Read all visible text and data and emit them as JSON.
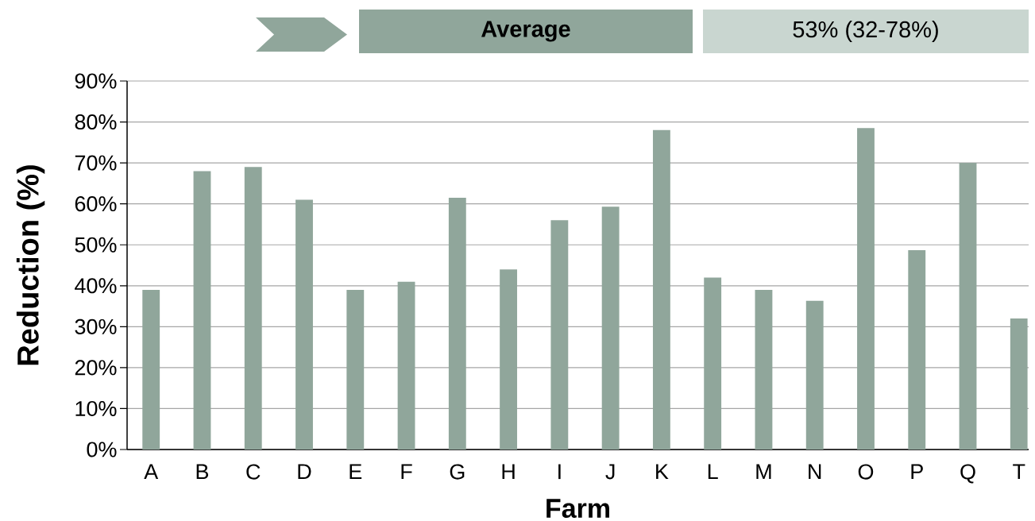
{
  "chart_data": {
    "type": "bar",
    "xlabel": "Farm",
    "ylabel": "Reduction (%)",
    "annotations": [
      "Average",
      "53% (32-78%)"
    ],
    "categories": [
      "A",
      "B",
      "C",
      "D",
      "E",
      "F",
      "G",
      "H",
      "I",
      "J",
      "K",
      "L",
      "M",
      "N",
      "O",
      "P",
      "Q",
      "T"
    ],
    "values": [
      39,
      68,
      69,
      61,
      39,
      41,
      61.5,
      44,
      56,
      59.3,
      78,
      42,
      39,
      36.3,
      78.5,
      48.7,
      70,
      32
    ],
    "color": "#90a69b",
    "ylim": [
      0,
      90
    ],
    "yticks": [
      {
        "value": 0,
        "label": "0%"
      },
      {
        "value": 10,
        "label": "10%"
      },
      {
        "value": 20,
        "label": "20%"
      },
      {
        "value": 30,
        "label": "30%"
      },
      {
        "value": 40,
        "label": "40%"
      },
      {
        "value": 50,
        "label": "50%"
      },
      {
        "value": 60,
        "label": "60%"
      },
      {
        "value": 70,
        "label": "70%"
      },
      {
        "value": 80,
        "label": "80%"
      },
      {
        "value": 90,
        "label": "90%"
      }
    ],
    "grid": "y"
  }
}
